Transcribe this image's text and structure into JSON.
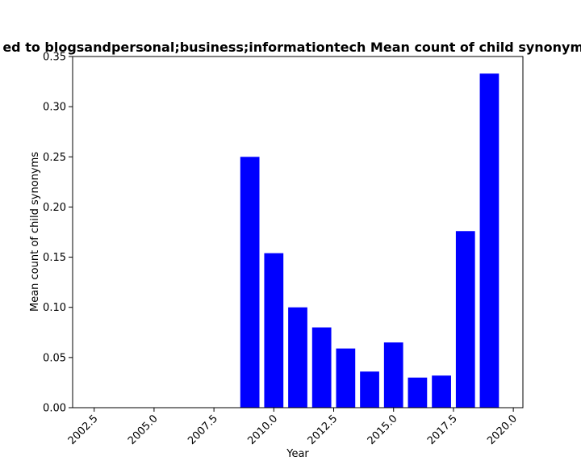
{
  "chart_data": {
    "type": "bar",
    "title": "ed to blogsandpersonal;business;informationtech Mean count of child synonyms",
    "xlabel": "Year",
    "ylabel": "Mean count of child synonyms",
    "x": [
      2009,
      2010,
      2011,
      2012,
      2013,
      2014,
      2015,
      2016,
      2017,
      2018,
      2019
    ],
    "values": [
      0.25,
      0.154,
      0.1,
      0.08,
      0.059,
      0.036,
      0.065,
      0.03,
      0.032,
      0.176,
      0.333
    ],
    "bar_width": 0.8,
    "xlim": [
      2001.6,
      2020.4
    ],
    "ylim": [
      0,
      0.35
    ],
    "xticks": [
      "2002.5",
      "2005.0",
      "2007.5",
      "2010.0",
      "2012.5",
      "2015.0",
      "2017.5",
      "2020.0"
    ],
    "yticks": [
      "0.00",
      "0.05",
      "0.10",
      "0.15",
      "0.20",
      "0.25",
      "0.30",
      "0.35"
    ],
    "bar_color": "#0000ff",
    "grid": false,
    "legend": "none"
  }
}
